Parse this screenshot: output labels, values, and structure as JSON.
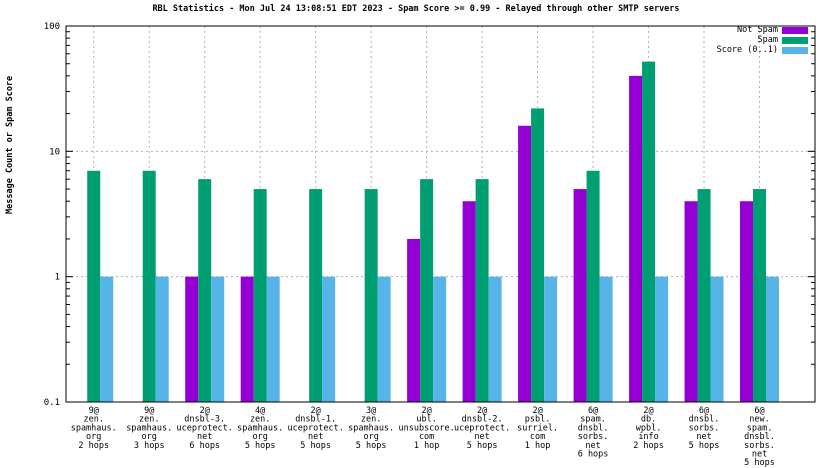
{
  "title": "RBL Statistics - Mon Jul 24 13:08:51 EDT 2023 - Spam Score >= 0.99 - Relayed through other SMTP servers",
  "colors": {
    "not_spam": "#9400d3",
    "spam": "#009e73",
    "score": "#56b4e9",
    "grid": "#b0b0b0",
    "frame": "#000000",
    "background": "#ffffff",
    "text": "#000000"
  },
  "legend": {
    "entries": [
      {
        "label": "Not Spam",
        "color": "#9400d3"
      },
      {
        "label": "Spam",
        "color": "#009e73"
      },
      {
        "label": "Score (0..1)",
        "color": "#56b4e9"
      }
    ]
  },
  "chart_data": {
    "type": "bar",
    "y_scale": "log",
    "ylabel": "Message Count or Spam Score",
    "ylim": [
      0.1,
      100
    ],
    "y_tick_labels": [
      {
        "value": 100,
        "label": "100"
      },
      {
        "value": 10,
        "label": "10"
      },
      {
        "value": 1,
        "label": "1"
      },
      {
        "value": 0.1,
        "label": "0.1"
      }
    ],
    "y_gridlines": [
      1,
      10
    ],
    "grid": "dashed",
    "legend_position": "top-right",
    "categories": [
      [
        "9@",
        "zen.",
        "spamhaus.",
        "org",
        "2 hops"
      ],
      [
        "9@",
        "zen.",
        "spamhaus.",
        "org",
        "3 hops"
      ],
      [
        "2@",
        "dnsbl-3.",
        "uceprotect.",
        "net",
        "6 hops"
      ],
      [
        "4@",
        "zen.",
        "spamhaus.",
        "org",
        "5 hops"
      ],
      [
        "2@",
        "dnsbl-1.",
        "uceprotect.",
        "net",
        "5 hops"
      ],
      [
        "3@",
        "zen.",
        "spamhaus.",
        "org",
        "5 hops"
      ],
      [
        "2@",
        "ubl.",
        "unsubscore.",
        "com",
        "1 hop"
      ],
      [
        "2@",
        "dnsbl-2.",
        "uceprotect.",
        "net",
        "5 hops"
      ],
      [
        "2@",
        "psbl.",
        "surriel.",
        "com",
        "1 hop"
      ],
      [
        "6@",
        "spam.",
        "dnsbl.",
        "sorbs.",
        "net",
        "6 hops"
      ],
      [
        "2@",
        "db.",
        "wpbl.",
        "info",
        "2 hops"
      ],
      [
        "6@",
        "dnsbl.",
        "sorbs.",
        "net",
        "5 hops"
      ],
      [
        "6@",
        "new.",
        "spam.",
        "dnsbl.",
        "sorbs.",
        "net",
        "5 hops"
      ]
    ],
    "series": [
      {
        "name": "Not Spam",
        "color": "#9400d3",
        "values": [
          null,
          null,
          1,
          1,
          null,
          null,
          2,
          4,
          16,
          5,
          40,
          4,
          4
        ]
      },
      {
        "name": "Spam",
        "color": "#009e73",
        "values": [
          7,
          7,
          6,
          5,
          5,
          5,
          6,
          6,
          22,
          7,
          52,
          5,
          5
        ]
      },
      {
        "name": "Score (0..1)",
        "color": "#56b4e9",
        "values": [
          1,
          1,
          1,
          1,
          1,
          1,
          1,
          1,
          1,
          1,
          1,
          1,
          1
        ]
      }
    ]
  }
}
